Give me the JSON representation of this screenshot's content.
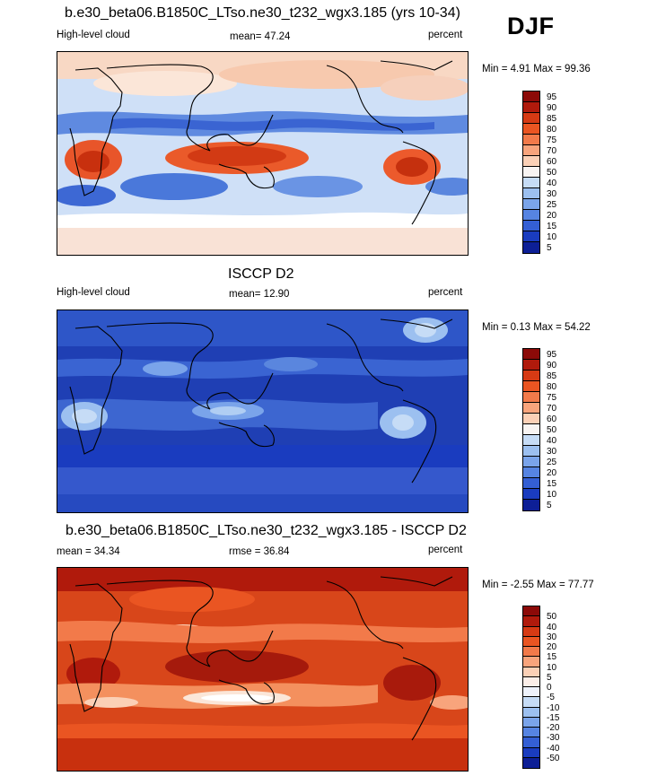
{
  "season": "DJF",
  "panels": [
    {
      "title": "b.e30_beta06.B1850C_LTso.ne30_t232_wgx3.185 (yrs 10-34)",
      "left": "High-level cloud",
      "center": "mean=  47.24",
      "right": "percent",
      "minmax": "Min =   4.91 Max =  99.36",
      "map_type": "model-high-cloud",
      "colorbar_levels": [
        "95",
        "90",
        "85",
        "80",
        "75",
        "70",
        "60",
        "50",
        "40",
        "30",
        "25",
        "20",
        "15",
        "10",
        "5"
      ],
      "colorbar_colors": [
        "#8c0a08",
        "#b01a0c",
        "#d63a14",
        "#ea5522",
        "#f27a4a",
        "#f8a47c",
        "#fbd0b6",
        "#f8f4f2",
        "#c6dcf6",
        "#9cc0f0",
        "#7aa4ea",
        "#5684e2",
        "#345fd4",
        "#1a3cbf",
        "#0d1f96"
      ]
    },
    {
      "title": "ISCCP D2",
      "left": "High-level cloud",
      "center": "mean=  12.90",
      "right": "percent",
      "minmax": "Min =   0.13 Max =  54.22",
      "map_type": "obs-high-cloud",
      "colorbar_levels": [
        "95",
        "90",
        "85",
        "80",
        "75",
        "70",
        "60",
        "50",
        "40",
        "30",
        "25",
        "20",
        "15",
        "10",
        "5"
      ],
      "colorbar_colors": [
        "#8c0a08",
        "#b01a0c",
        "#d63a14",
        "#ea5522",
        "#f27a4a",
        "#f8a47c",
        "#fbd0b6",
        "#f8f4f2",
        "#c6dcf6",
        "#9cc0f0",
        "#7aa4ea",
        "#5684e2",
        "#345fd4",
        "#1a3cbf",
        "#0d1f96"
      ]
    },
    {
      "title": "b.e30_beta06.B1850C_LTso.ne30_t232_wgx3.185 - ISCCP D2",
      "left": "mean =  34.34",
      "center": "rmse =  36.84",
      "right": "percent",
      "minmax": "Min =  -2.55 Max =  77.77",
      "map_type": "difference",
      "colorbar_levels": [
        "50",
        "40",
        "30",
        "20",
        "15",
        "10",
        "5",
        "0",
        "-5",
        "-10",
        "-15",
        "-20",
        "-30",
        "-40",
        "-50"
      ],
      "colorbar_colors": [
        "#8c0a08",
        "#b01a0c",
        "#d63a14",
        "#ea5522",
        "#f27a4a",
        "#f8a47c",
        "#fbd0b6",
        "#fbeee8",
        "#eef2fb",
        "#c6dcf6",
        "#9cc0f0",
        "#7aa4ea",
        "#5684e2",
        "#345fd4",
        "#1a3cbf",
        "#0d1f96"
      ]
    }
  ]
}
